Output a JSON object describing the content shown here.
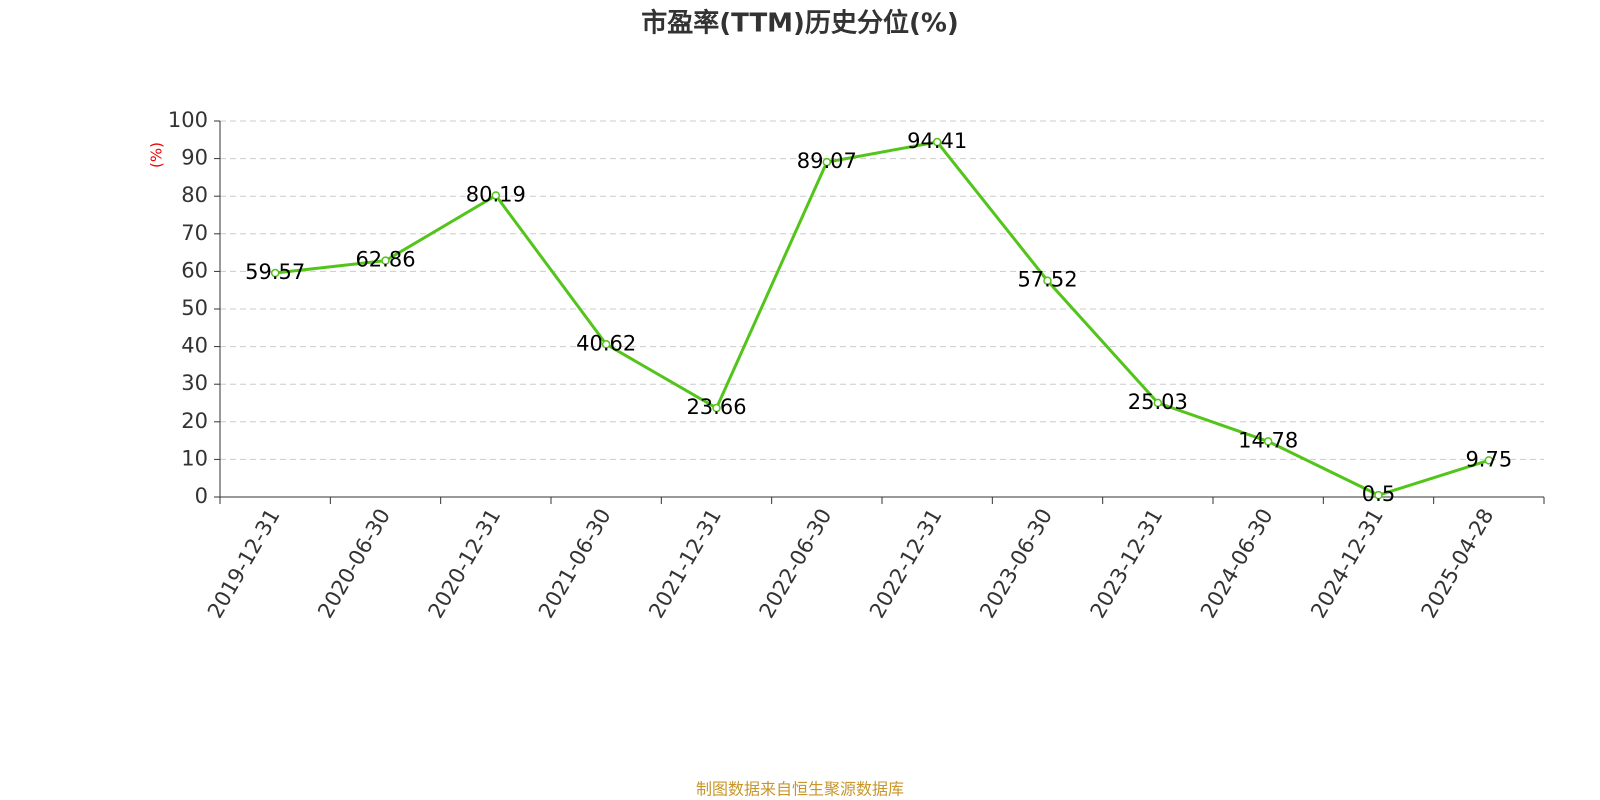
{
  "chart_data": {
    "type": "line",
    "title": "市盈率(TTM)历史分位(%)",
    "y_label": "(%)",
    "source": "制图数据来自恒生聚源数据库",
    "categories": [
      "2019-12-31",
      "2020-06-30",
      "2020-12-31",
      "2021-06-30",
      "2021-12-31",
      "2022-06-30",
      "2022-12-31",
      "2023-06-30",
      "2023-12-31",
      "2024-06-30",
      "2024-12-31",
      "2025-04-28"
    ],
    "values": [
      59.57,
      62.86,
      80.19,
      40.62,
      23.66,
      89.07,
      94.41,
      57.52,
      25.03,
      14.78,
      0.5,
      9.75
    ],
    "color": "#52c41a",
    "ylim": [
      0,
      100
    ],
    "yticks": [
      0,
      10,
      20,
      30,
      40,
      50,
      60,
      70,
      80,
      90,
      100
    ],
    "grid": true
  }
}
